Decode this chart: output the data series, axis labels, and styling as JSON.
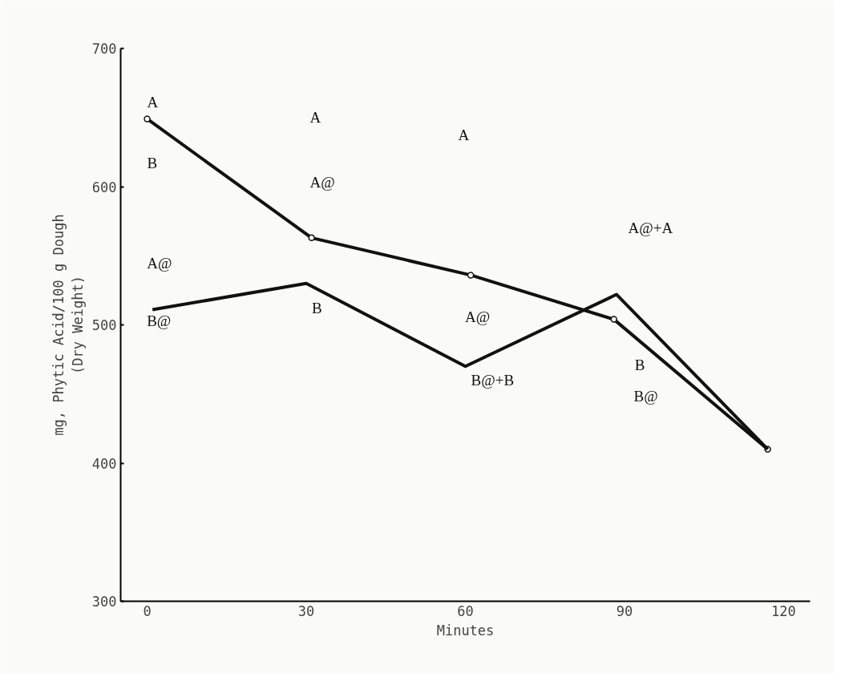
{
  "chart_data": {
    "type": "line",
    "xlabel": "Minutes",
    "ylabel": "mg, Phytic Acid/100 g Dough\n(Dry Weight)",
    "xlim": [
      -5,
      125
    ],
    "xticks": [
      0,
      30,
      60,
      90,
      120
    ],
    "ylim": [
      300,
      700
    ],
    "yticks": [
      300,
      400,
      500,
      600,
      700
    ],
    "grid": false,
    "marker": "circle",
    "line_style": "solid",
    "series": [
      {
        "color": "#111111",
        "x": [
          0,
          31,
          61,
          88,
          117
        ],
        "values": [
          649,
          563,
          536,
          504,
          410
        ]
      },
      {
        "color": "#111111",
        "x": [
          1,
          30,
          60,
          88.5,
          117
        ],
        "values": [
          511,
          530,
          470,
          522,
          410
        ],
        "marker": "none"
      }
    ],
    "annotations": [
      {
        "text": "A",
        "x": 0,
        "y": 649
      },
      {
        "text": "B",
        "x": 0,
        "y": 649
      },
      {
        "text": "A@",
        "x": 1,
        "y": 511
      },
      {
        "text": "B@",
        "x": 1,
        "y": 511
      },
      "A",
      "A@",
      {
        "text": "B",
        "x": 30,
        "y": 530
      },
      "A",
      {
        "text": "A@",
        "x": 61,
        "y": 536
      },
      {
        "text": "B@+B",
        "x": 60,
        "y": 470
      },
      "A@+A",
      {
        "text": "B",
        "x": 88,
        "y": 504
      },
      "B@"
    ]
  }
}
